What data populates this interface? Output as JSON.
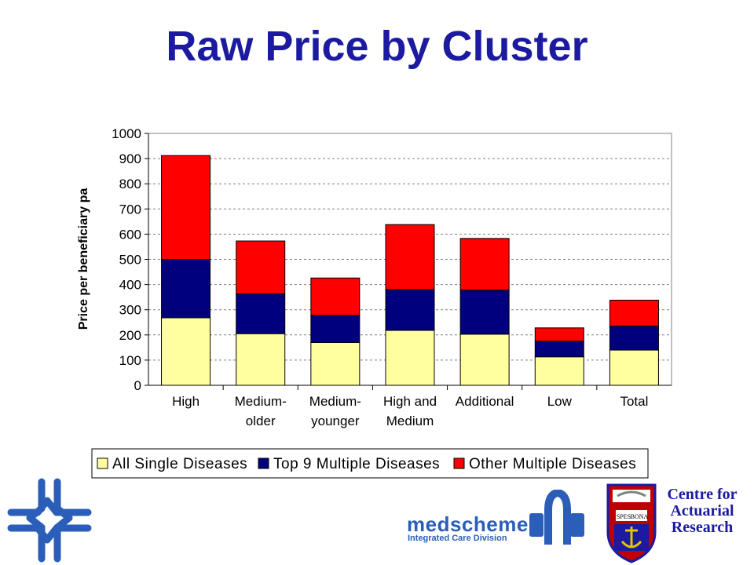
{
  "slide": {
    "title": "Raw Price by Cluster"
  },
  "chart_data": {
    "type": "bar",
    "stacked": true,
    "title": "",
    "xlabel": "",
    "ylabel": "Price per beneficiary pa",
    "ylim": [
      0,
      1000
    ],
    "yticks": [
      0,
      100,
      200,
      300,
      400,
      500,
      600,
      700,
      800,
      900,
      1000
    ],
    "grid": true,
    "legend_position": "bottom",
    "categories": [
      [
        "High"
      ],
      [
        "Medium-",
        "older"
      ],
      [
        "Medium-",
        "younger"
      ],
      [
        "High and",
        "Medium"
      ],
      [
        "Additional"
      ],
      [
        "Low"
      ],
      [
        "Total"
      ]
    ],
    "series": [
      {
        "name": "All Single Diseases",
        "color": "#ffffa0",
        "values": [
          268,
          205,
          170,
          218,
          203,
          113,
          140
        ]
      },
      {
        "name": "Top 9 Multiple Diseases",
        "color": "#00007f",
        "values": [
          232,
          158,
          108,
          162,
          175,
          62,
          95
        ]
      },
      {
        "name": "Other Multiple Diseases",
        "color": "#ff0000",
        "values": [
          412,
          210,
          148,
          258,
          205,
          53,
          103
        ]
      }
    ]
  },
  "logos": {
    "car": {
      "lines": [
        "Centre for",
        "Actuarial",
        "Research"
      ],
      "shield_text": [
        "SPES",
        "BONA"
      ]
    },
    "medscheme": {
      "name": "medscheme",
      "subtitle": "Integrated Care Division"
    }
  },
  "colors": {
    "title": "#1b1aa0",
    "medscheme_blue": "#2a5eb8",
    "plot_border": "#808080",
    "gridline": "#808080"
  }
}
